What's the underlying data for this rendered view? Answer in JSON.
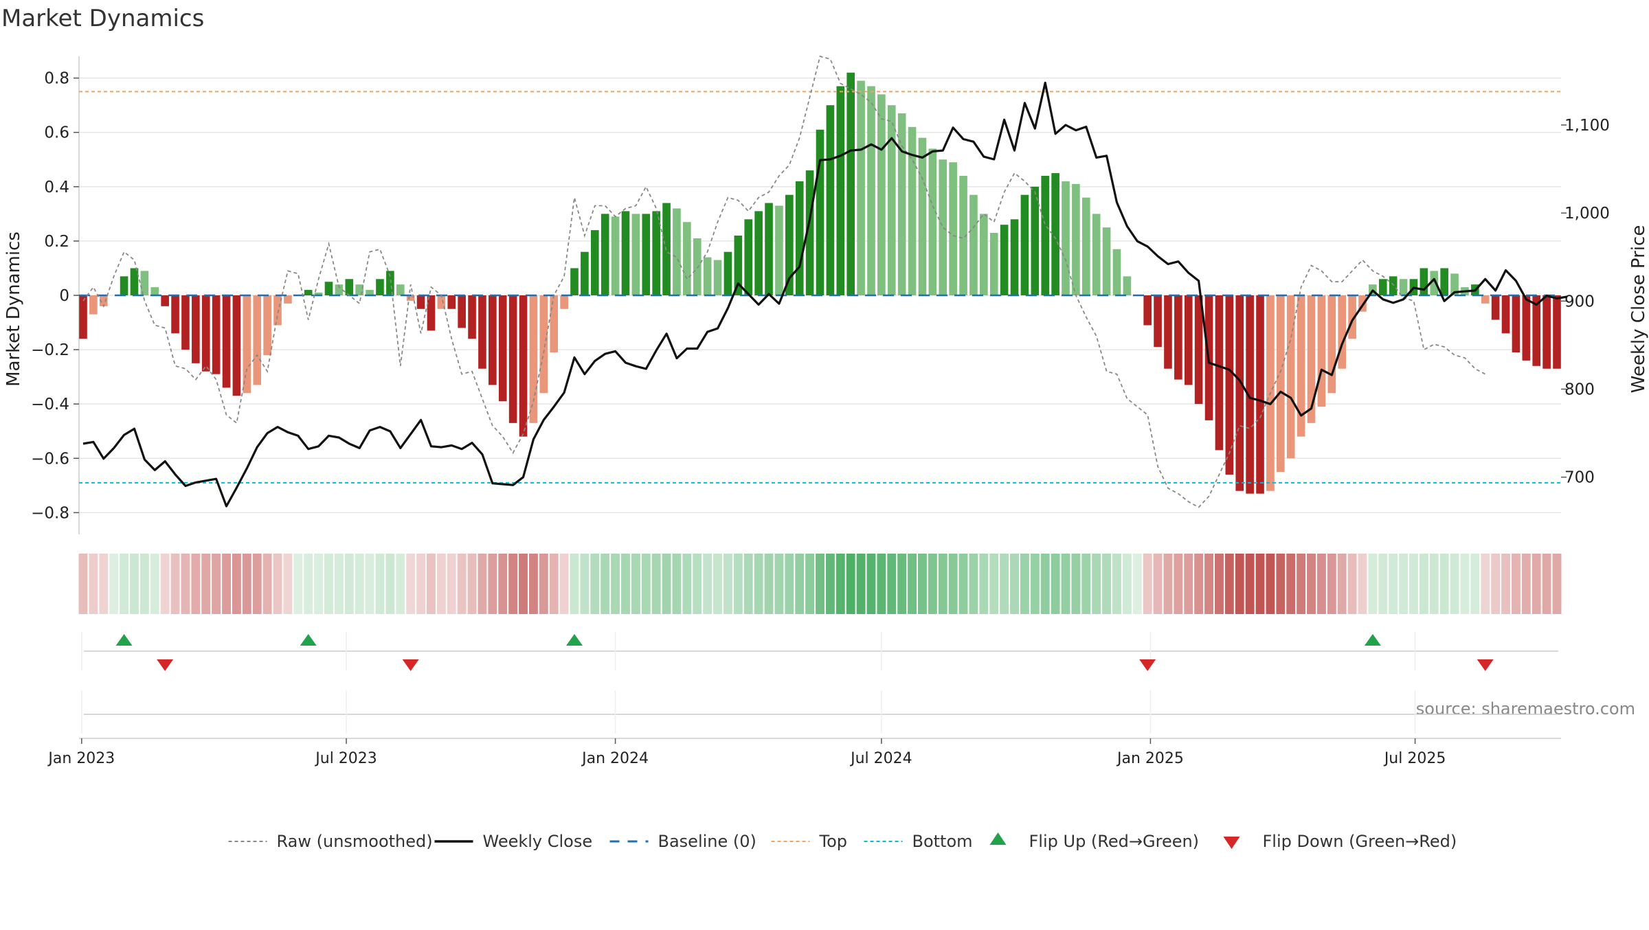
{
  "title": "Market Dynamics",
  "source": "source: sharemaestro.com",
  "colors": {
    "strong_green": "#228b22",
    "light_green": "#7fbf7f",
    "strong_red": "#b22222",
    "light_red": "#e9967a",
    "top_line": "#f4a460",
    "bottom_line": "#00bcd4",
    "baseline": "#1f6fb5",
    "raw": "#888888",
    "close": "#111111",
    "flip_up": "#22a24a",
    "flip_down": "#d62728",
    "grid": "#e6e6e6"
  },
  "chart_data": {
    "type": "bar",
    "start_date": "2023-01-02",
    "interval": "weekly",
    "y_left": {
      "label": "Market Dynamics",
      "ticks": [
        -0.8,
        -0.6,
        -0.4,
        -0.2,
        0,
        0.2,
        0.4,
        0.6,
        0.8
      ],
      "tick_labels": [
        "−0.8",
        "−0.6",
        "−0.4",
        "−0.2",
        "0",
        "0.2",
        "0.4",
        "0.6",
        "0.8"
      ],
      "range": [
        -0.88,
        0.88
      ]
    },
    "y_right": {
      "label": "Weekly Close Price",
      "ticks": [
        700,
        800,
        900,
        1000,
        1100
      ],
      "tick_labels": [
        "700",
        "800",
        "900",
        "1,000",
        "1,100"
      ],
      "range": [
        635,
        1178
      ]
    },
    "x_ticks": [
      {
        "label": "Jan 2023",
        "date": "2023-01-01"
      },
      {
        "label": "Jul 2023",
        "date": "2023-07-01"
      },
      {
        "label": "Jan 2024",
        "date": "2024-01-01"
      },
      {
        "label": "Jul 2024",
        "date": "2024-07-01"
      },
      {
        "label": "Jan 2025",
        "date": "2025-01-01"
      },
      {
        "label": "Jul 2025",
        "date": "2025-07-01"
      }
    ],
    "top_level": 0.75,
    "bottom_level": -0.69,
    "market_dynamics": [
      -0.16,
      -0.07,
      -0.04,
      0.0,
      0.07,
      0.1,
      0.09,
      0.03,
      -0.04,
      -0.14,
      -0.2,
      -0.25,
      -0.28,
      -0.29,
      -0.34,
      -0.37,
      -0.36,
      -0.33,
      -0.22,
      -0.11,
      -0.03,
      0.0,
      0.02,
      0.01,
      0.05,
      0.04,
      0.06,
      0.04,
      0.02,
      0.06,
      0.09,
      0.04,
      -0.02,
      -0.05,
      -0.13,
      -0.05,
      -0.05,
      -0.12,
      -0.16,
      -0.27,
      -0.33,
      -0.39,
      -0.47,
      -0.52,
      -0.47,
      -0.36,
      -0.21,
      -0.05,
      0.1,
      0.16,
      0.24,
      0.3,
      0.29,
      0.31,
      0.3,
      0.3,
      0.31,
      0.34,
      0.32,
      0.27,
      0.21,
      0.14,
      0.13,
      0.16,
      0.22,
      0.28,
      0.31,
      0.34,
      0.33,
      0.37,
      0.42,
      0.46,
      0.61,
      0.7,
      0.77,
      0.82,
      0.79,
      0.77,
      0.74,
      0.7,
      0.67,
      0.62,
      0.58,
      0.54,
      0.5,
      0.49,
      0.44,
      0.37,
      0.3,
      0.23,
      0.26,
      0.28,
      0.37,
      0.4,
      0.44,
      0.45,
      0.42,
      0.41,
      0.36,
      0.3,
      0.25,
      0.17,
      0.07,
      0.0,
      -0.11,
      -0.19,
      -0.27,
      -0.31,
      -0.33,
      -0.4,
      -0.46,
      -0.57,
      -0.66,
      -0.72,
      -0.73,
      -0.73,
      -0.72,
      -0.65,
      -0.6,
      -0.52,
      -0.47,
      -0.41,
      -0.36,
      -0.27,
      -0.16,
      -0.06,
      0.04,
      0.06,
      0.07,
      0.06,
      0.06,
      0.1,
      0.09,
      0.1,
      0.08,
      0.03,
      0.04,
      -0.03,
      -0.09,
      -0.14,
      -0.21,
      -0.24,
      -0.26,
      -0.27,
      -0.27
    ],
    "raw_unsmoothed": [
      -0.02,
      0.03,
      -0.04,
      0.07,
      0.16,
      0.13,
      -0.02,
      -0.11,
      -0.12,
      -0.26,
      -0.27,
      -0.31,
      -0.26,
      -0.31,
      -0.44,
      -0.47,
      -0.27,
      -0.22,
      -0.28,
      -0.07,
      0.09,
      0.08,
      -0.09,
      0.06,
      0.19,
      0.03,
      0.0,
      -0.03,
      0.16,
      0.17,
      0.07,
      -0.26,
      0.04,
      -0.14,
      0.03,
      0.0,
      -0.16,
      -0.29,
      -0.28,
      -0.38,
      -0.48,
      -0.52,
      -0.58,
      -0.51,
      -0.39,
      -0.21,
      0.0,
      0.07,
      0.36,
      0.22,
      0.33,
      0.33,
      0.29,
      0.32,
      0.33,
      0.4,
      0.32,
      0.16,
      0.14,
      0.06,
      0.1,
      0.16,
      0.27,
      0.36,
      0.35,
      0.31,
      0.36,
      0.38,
      0.44,
      0.48,
      0.58,
      0.73,
      0.88,
      0.87,
      0.78,
      0.76,
      0.74,
      0.71,
      0.65,
      0.64,
      0.55,
      0.5,
      0.43,
      0.33,
      0.25,
      0.22,
      0.21,
      0.25,
      0.3,
      0.27,
      0.38,
      0.45,
      0.42,
      0.38,
      0.26,
      0.21,
      0.13,
      0.0,
      -0.08,
      -0.15,
      -0.28,
      -0.29,
      -0.38,
      -0.41,
      -0.44,
      -0.63,
      -0.71,
      -0.73,
      -0.76,
      -0.78,
      -0.74,
      -0.66,
      -0.58,
      -0.48,
      -0.49,
      -0.45,
      -0.36,
      -0.28,
      -0.16,
      0.03,
      0.11,
      0.09,
      0.05,
      0.05,
      0.09,
      0.13,
      0.09,
      0.07,
      0.04,
      -0.01,
      -0.02,
      -0.2,
      -0.18,
      -0.19,
      -0.22,
      -0.23,
      -0.27,
      -0.29
    ],
    "weekly_close": [
      738,
      740,
      721,
      733,
      748,
      755,
      720,
      708,
      718,
      703,
      690,
      694,
      696,
      698,
      667,
      688,
      710,
      734,
      750,
      757,
      751,
      747,
      732,
      735,
      747,
      745,
      738,
      733,
      753,
      757,
      752,
      733,
      749,
      765,
      735,
      734,
      736,
      732,
      739,
      726,
      693,
      692,
      691,
      700,
      743,
      765,
      780,
      796,
      836,
      817,
      832,
      840,
      843,
      830,
      826,
      823,
      844,
      863,
      835,
      846,
      846,
      865,
      869,
      892,
      920,
      908,
      896,
      908,
      897,
      926,
      939,
      993,
      1060,
      1061,
      1065,
      1071,
      1072,
      1078,
      1072,
      1085,
      1070,
      1066,
      1063,
      1070,
      1071,
      1097,
      1084,
      1081,
      1064,
      1061,
      1106,
      1071,
      1125,
      1096,
      1148,
      1090,
      1100,
      1094,
      1098,
      1063,
      1065,
      1012,
      985,
      968,
      962,
      951,
      942,
      945,
      932,
      923,
      830,
      826,
      822,
      810,
      790,
      787,
      783,
      797,
      790,
      770,
      778,
      822,
      816,
      851,
      878,
      895,
      912,
      902,
      898,
      902,
      915,
      913,
      925,
      900,
      910,
      911,
      912,
      925,
      912,
      935,
      923,
      902,
      896,
      906,
      903,
      905
    ]
  },
  "legend": [
    {
      "label": "Raw (unsmoothed)",
      "kind": "raw"
    },
    {
      "label": "Weekly Close",
      "kind": "close"
    },
    {
      "label": "Baseline (0)",
      "kind": "baseline"
    },
    {
      "label": "Top",
      "kind": "top"
    },
    {
      "label": "Bottom",
      "kind": "bottom"
    },
    {
      "label": "Flip Up (Red→Green)",
      "kind": "flip-up"
    },
    {
      "label": "Flip Down (Green→Red)",
      "kind": "flip-down"
    }
  ]
}
